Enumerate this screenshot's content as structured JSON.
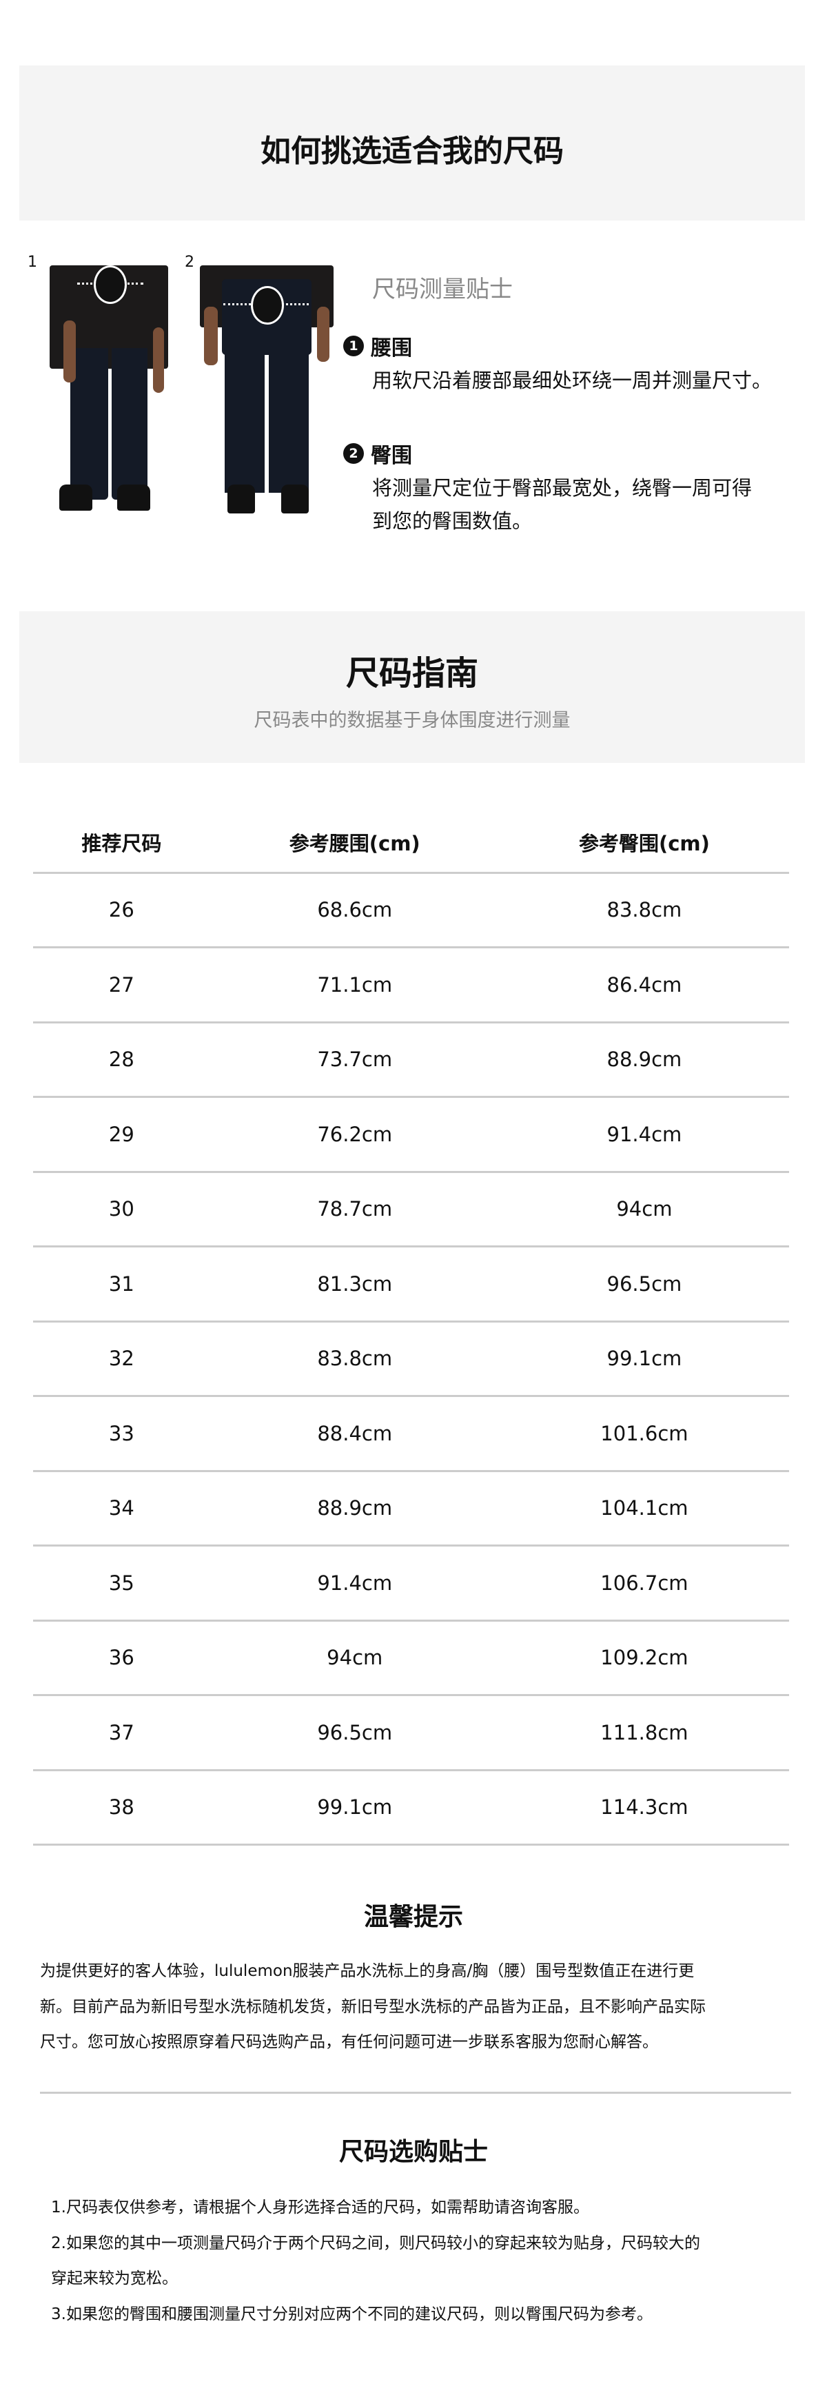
{
  "header": {
    "title": "如何挑选适合我的尺码"
  },
  "measure": {
    "photo_labels": [
      "1",
      "2"
    ],
    "tips_title": "尺码测量贴士",
    "items": [
      {
        "num": "1",
        "title": "腰围",
        "desc": [
          "用软尺沿着腰部最细处环绕一周并测量尺寸。"
        ]
      },
      {
        "num": "2",
        "title": "臀围",
        "desc": [
          "将测量尺定位于臀部最宽处，绕臀一周可得",
          "到您的臀围数值。"
        ]
      }
    ]
  },
  "guide": {
    "title": "尺码指南",
    "subtitle": "尺码表中的数据基于身体围度进行测量"
  },
  "table": {
    "headers": [
      "推荐尺码",
      "参考腰围(cm)",
      "参考臀围(cm)"
    ],
    "rows": [
      [
        "26",
        "68.6cm",
        "83.8cm"
      ],
      [
        "27",
        "71.1cm",
        "86.4cm"
      ],
      [
        "28",
        "73.7cm",
        "88.9cm"
      ],
      [
        "29",
        "76.2cm",
        "91.4cm"
      ],
      [
        "30",
        "78.7cm",
        "94cm"
      ],
      [
        "31",
        "81.3cm",
        "96.5cm"
      ],
      [
        "32",
        "83.8cm",
        "99.1cm"
      ],
      [
        "33",
        "88.4cm",
        "101.6cm"
      ],
      [
        "34",
        "88.9cm",
        "104.1cm"
      ],
      [
        "35",
        "91.4cm",
        "106.7cm"
      ],
      [
        "36",
        "94cm",
        "109.2cm"
      ],
      [
        "37",
        "96.5cm",
        "111.8cm"
      ],
      [
        "38",
        "99.1cm",
        "114.3cm"
      ]
    ]
  },
  "notice": {
    "title": "温馨提示",
    "lines": [
      "为提供更好的客人体验，lululemon服装产品水洗标上的身高/胸（腰）围号型数值正在进行更",
      "新。目前产品为新旧号型水洗标随机发货，新旧号型水洗标的产品皆为正品，且不影响产品实际",
      "尺寸。您可放心按照原穿着尺码选购产品，有任何问题可进一步联系客服为您耐心解答。"
    ]
  },
  "buying_tips": {
    "title": "尺码选购贴士",
    "lines": [
      "1.尺码表仅供参考，请根据个人身形选择合适的尺码，如需帮助请咨询客服。",
      "2.如果您的其中一项测量尺码介于两个尺码之间，则尺码较小的穿起来较为贴身，尺码较大的",
      "穿起来较为宽松。",
      "3.如果您的臀围和腰围测量尺寸分别对应两个不同的建议尺码，则以臀围尺码为参考。"
    ]
  }
}
